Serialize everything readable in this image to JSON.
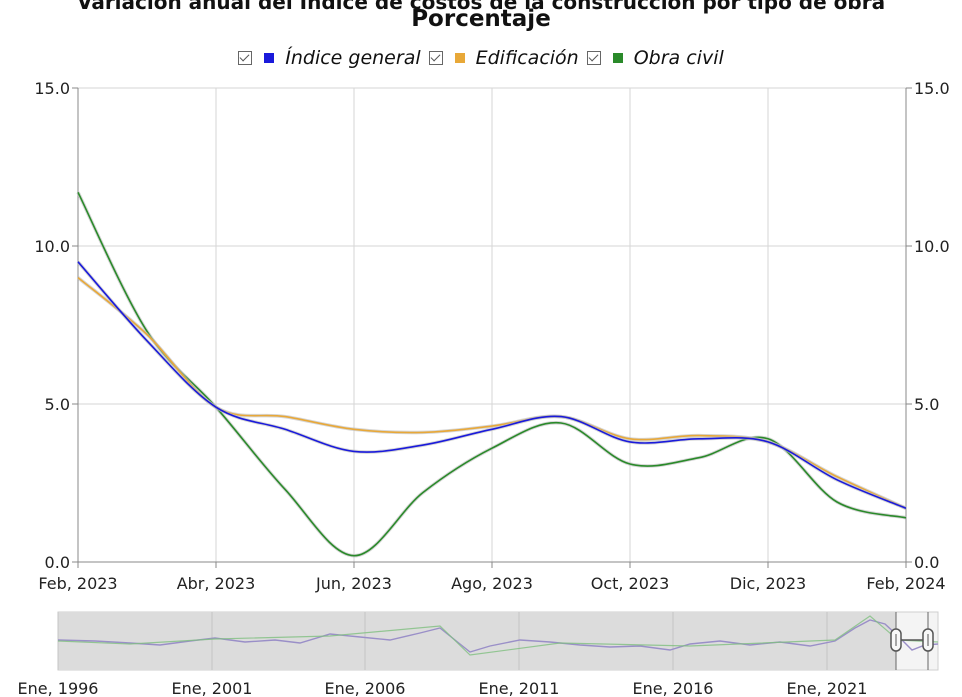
{
  "header": {
    "title_partial": "Variación anual del Índice de costos de la construcción por tipo de obra",
    "title": "Porcentaje"
  },
  "legend": [
    {
      "label": "Índice general",
      "color": "#1a1adb",
      "checked": true
    },
    {
      "label": "Edificación",
      "color": "#e8a838",
      "checked": true
    },
    {
      "label": "Obra civil",
      "color": "#2a8a2a",
      "checked": true
    }
  ],
  "chart_data": {
    "type": "line",
    "title": "Porcentaje",
    "xlabel": "",
    "ylabel": "",
    "ylim": [
      0,
      15
    ],
    "yticks": [
      "0.0",
      "5.0",
      "10.0",
      "15.0"
    ],
    "x_ticks": [
      "Feb, 2023",
      "Abr, 2023",
      "Jun, 2023",
      "Ago, 2023",
      "Oct, 2023",
      "Dic, 2023",
      "Feb, 2024"
    ],
    "x": [
      "2023-02",
      "2023-03",
      "2023-04",
      "2023-05",
      "2023-06",
      "2023-07",
      "2023-08",
      "2023-09",
      "2023-10",
      "2023-11",
      "2023-12",
      "2024-01",
      "2024-02"
    ],
    "grid": true,
    "legend_position": "top",
    "series": [
      {
        "name": "Índice general",
        "color": "#1a1adb",
        "values": [
          9.5,
          7.0,
          4.9,
          4.2,
          3.5,
          3.7,
          4.2,
          4.6,
          3.8,
          3.9,
          3.8,
          2.6,
          1.7
        ]
      },
      {
        "name": "Edificación",
        "color": "#e8a838",
        "values": [
          9.0,
          7.2,
          4.9,
          4.6,
          4.2,
          4.1,
          4.3,
          4.6,
          3.9,
          4.0,
          3.8,
          2.7,
          1.7
        ]
      },
      {
        "name": "Obra civil",
        "color": "#2a8a2a",
        "values": [
          11.7,
          7.3,
          4.9,
          2.3,
          0.2,
          2.2,
          3.6,
          4.4,
          3.1,
          3.3,
          3.9,
          1.9,
          1.4
        ]
      }
    ],
    "navigator": {
      "x_ticks": [
        "Ene, 1996",
        "Ene, 2001",
        "Ene, 2006",
        "Ene, 2011",
        "Ene, 2016",
        "Ene, 2021"
      ]
    }
  }
}
